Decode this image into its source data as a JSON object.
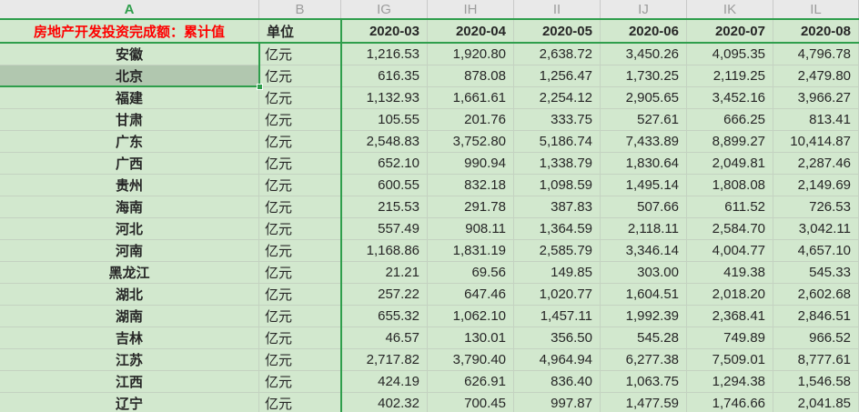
{
  "sheet": {
    "column_headers": [
      "A",
      "B",
      "IG",
      "IH",
      "II",
      "IJ",
      "IK",
      "IL"
    ],
    "selected_column": "A",
    "header_row": {
      "title": "房地产开发投资完成额：累计值",
      "unit_label": "单位",
      "dates": [
        "2020-03",
        "2020-04",
        "2020-05",
        "2020-06",
        "2020-07",
        "2020-08"
      ]
    },
    "unit_value": "亿元",
    "rows": [
      {
        "province": "安徽",
        "highlighted": false,
        "values": [
          "1,216.53",
          "1,920.80",
          "2,638.72",
          "3,450.26",
          "4,095.35",
          "4,796.78"
        ]
      },
      {
        "province": "北京",
        "highlighted": true,
        "values": [
          "616.35",
          "878.08",
          "1,256.47",
          "1,730.25",
          "2,119.25",
          "2,479.80"
        ]
      },
      {
        "province": "福建",
        "highlighted": false,
        "values": [
          "1,132.93",
          "1,661.61",
          "2,254.12",
          "2,905.65",
          "3,452.16",
          "3,966.27"
        ]
      },
      {
        "province": "甘肃",
        "highlighted": false,
        "values": [
          "105.55",
          "201.76",
          "333.75",
          "527.61",
          "666.25",
          "813.41"
        ]
      },
      {
        "province": "广东",
        "highlighted": false,
        "values": [
          "2,548.83",
          "3,752.80",
          "5,186.74",
          "7,433.89",
          "8,899.27",
          "10,414.87"
        ]
      },
      {
        "province": "广西",
        "highlighted": false,
        "values": [
          "652.10",
          "990.94",
          "1,338.79",
          "1,830.64",
          "2,049.81",
          "2,287.46"
        ]
      },
      {
        "province": "贵州",
        "highlighted": false,
        "values": [
          "600.55",
          "832.18",
          "1,098.59",
          "1,495.14",
          "1,808.08",
          "2,149.69"
        ]
      },
      {
        "province": "海南",
        "highlighted": false,
        "values": [
          "215.53",
          "291.78",
          "387.83",
          "507.66",
          "611.52",
          "726.53"
        ]
      },
      {
        "province": "河北",
        "highlighted": false,
        "values": [
          "557.49",
          "908.11",
          "1,364.59",
          "2,118.11",
          "2,584.70",
          "3,042.11"
        ]
      },
      {
        "province": "河南",
        "highlighted": false,
        "values": [
          "1,168.86",
          "1,831.19",
          "2,585.79",
          "3,346.14",
          "4,004.77",
          "4,657.10"
        ]
      },
      {
        "province": "黑龙江",
        "highlighted": false,
        "values": [
          "21.21",
          "69.56",
          "149.85",
          "303.00",
          "419.38",
          "545.33"
        ]
      },
      {
        "province": "湖北",
        "highlighted": false,
        "values": [
          "257.22",
          "647.46",
          "1,020.77",
          "1,604.51",
          "2,018.20",
          "2,602.68"
        ]
      },
      {
        "province": "湖南",
        "highlighted": false,
        "values": [
          "655.32",
          "1,062.10",
          "1,457.11",
          "1,992.39",
          "2,368.41",
          "2,846.51"
        ]
      },
      {
        "province": "吉林",
        "highlighted": false,
        "values": [
          "46.57",
          "130.01",
          "356.50",
          "545.28",
          "749.89",
          "966.52"
        ]
      },
      {
        "province": "江苏",
        "highlighted": false,
        "values": [
          "2,717.82",
          "3,790.40",
          "4,964.94",
          "6,277.38",
          "7,509.01",
          "8,777.61"
        ]
      },
      {
        "province": "江西",
        "highlighted": false,
        "values": [
          "424.19",
          "626.91",
          "836.40",
          "1,063.75",
          "1,294.38",
          "1,546.58"
        ]
      },
      {
        "province": "辽宁",
        "highlighted": false,
        "values": [
          "402.32",
          "700.45",
          "997.87",
          "1,477.59",
          "1,746.66",
          "2,041.85"
        ]
      }
    ]
  },
  "colors": {
    "accent_green": "#2f9e4c",
    "cell_fill_green": "#d2e8ce",
    "selected_cell_fill": "#b1c7af",
    "gridline": "#c4d2c1",
    "column_header_bg": "#e9e9e9",
    "column_header_text": "#9c9c9c",
    "title_red": "#fe0000",
    "body_text": "#262626"
  }
}
